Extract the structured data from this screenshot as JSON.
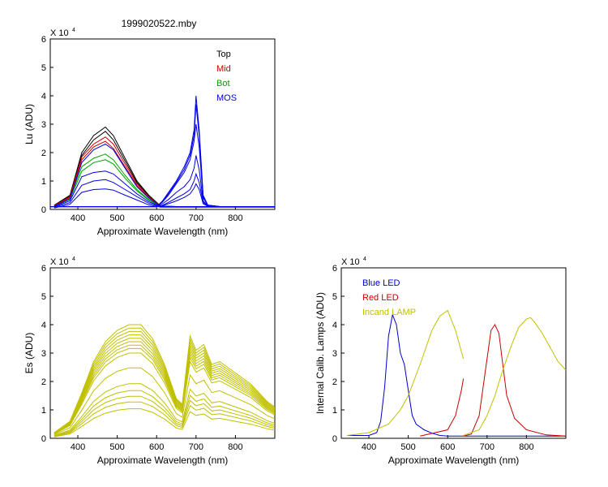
{
  "figure_title": "1999020522.mby",
  "chart_data": [
    {
      "type": "line",
      "title": "",
      "xlabel": "Approximate Wavelength (nm)",
      "ylabel": "Lu (ADU)",
      "multiplier": "X 10",
      "exponent": "4",
      "xlim": [
        330,
        900
      ],
      "ylim": [
        0,
        60000
      ],
      "xticks": [
        "400",
        "500",
        "600",
        "700",
        "800"
      ],
      "xtick_values": [
        400,
        500,
        600,
        700,
        800
      ],
      "yticks": [
        "0",
        "1",
        "2",
        "3",
        "4",
        "5",
        "6"
      ],
      "ytick_values": [
        0,
        10000,
        20000,
        30000,
        40000,
        50000,
        60000
      ],
      "legend_position": "top-right",
      "legend": [
        {
          "name": "Top",
          "color": "#000000"
        },
        {
          "name": "Mid",
          "color": "#cc0000"
        },
        {
          "name": "Bot",
          "color": "#00a000"
        },
        {
          "name": "MOS",
          "color": "#0000ee"
        }
      ],
      "series": [
        {
          "name": "Top",
          "color": "#000000",
          "x": [
            340,
            380,
            410,
            440,
            470,
            490,
            520,
            550,
            580,
            610,
            650,
            900
          ],
          "y": [
            1500,
            5000,
            20000,
            26000,
            29000,
            26000,
            18000,
            10000,
            5000,
            1200,
            1000,
            1000
          ]
        },
        {
          "name": "Top",
          "color": "#000000",
          "x": [
            340,
            380,
            410,
            440,
            470,
            490,
            520,
            550,
            580,
            610,
            650,
            900
          ],
          "y": [
            1400,
            4700,
            19000,
            24500,
            27500,
            24500,
            17000,
            9500,
            4700,
            1100,
            1000,
            1000
          ]
        },
        {
          "name": "Mid",
          "color": "#cc0000",
          "x": [
            340,
            380,
            410,
            440,
            470,
            490,
            520,
            550,
            580,
            610,
            650,
            900
          ],
          "y": [
            1300,
            4500,
            18500,
            23000,
            25500,
            23000,
            16000,
            9000,
            4500,
            1100,
            1000,
            1000
          ]
        },
        {
          "name": "Mid",
          "color": "#cc0000",
          "x": [
            340,
            380,
            410,
            440,
            470,
            490,
            520,
            550,
            580,
            610,
            650,
            900
          ],
          "y": [
            1200,
            4200,
            17500,
            22000,
            24000,
            21500,
            15000,
            8500,
            4200,
            1100,
            1000,
            1000
          ]
        },
        {
          "name": "Bot",
          "color": "#00a000",
          "x": [
            340,
            380,
            410,
            440,
            470,
            490,
            520,
            550,
            580,
            610,
            650,
            900
          ],
          "y": [
            1100,
            3800,
            15000,
            18000,
            19500,
            17500,
            12000,
            7000,
            3500,
            1000,
            1000,
            1000
          ]
        },
        {
          "name": "Bot",
          "color": "#00a000",
          "x": [
            340,
            380,
            410,
            440,
            470,
            490,
            520,
            550,
            580,
            610,
            650,
            900
          ],
          "y": [
            1000,
            3500,
            13500,
            16500,
            17500,
            16000,
            11000,
            6500,
            3200,
            1000,
            1000,
            1000
          ]
        },
        {
          "name": "MOS",
          "color": "#0000ee",
          "x": [
            340,
            380,
            410,
            440,
            470,
            490,
            520,
            550,
            580,
            610,
            650,
            900
          ],
          "y": [
            1100,
            3800,
            16500,
            21000,
            23000,
            21000,
            14500,
            8000,
            4000,
            1000,
            1000,
            1000
          ]
        },
        {
          "name": "MOS",
          "color": "#0000ee",
          "x": [
            340,
            380,
            410,
            440,
            470,
            490,
            520,
            550,
            580,
            610,
            650,
            900
          ],
          "y": [
            900,
            3000,
            11500,
            13000,
            13500,
            12500,
            9000,
            5500,
            2700,
            1000,
            1000,
            1000
          ]
        },
        {
          "name": "MOS",
          "color": "#0000ee",
          "x": [
            340,
            380,
            410,
            440,
            470,
            490,
            520,
            550,
            580,
            610,
            650,
            900
          ],
          "y": [
            700,
            2400,
            8500,
            10000,
            10500,
            9500,
            7000,
            4500,
            2200,
            900,
            900,
            900
          ]
        },
        {
          "name": "MOS",
          "color": "#0000ee",
          "x": [
            340,
            380,
            410,
            440,
            470,
            490,
            520,
            550,
            580,
            610,
            650,
            900
          ],
          "y": [
            500,
            1800,
            6000,
            7000,
            7200,
            6800,
            5000,
            3300,
            1600,
            800,
            800,
            800
          ]
        },
        {
          "name": "MOS",
          "color": "#0000ee",
          "x": [
            330,
            600,
            615,
            630,
            650,
            670,
            685,
            695,
            700,
            708,
            718,
            730,
            760,
            900
          ],
          "y": [
            1000,
            1000,
            3000,
            6000,
            10000,
            15000,
            20000,
            28000,
            40000,
            28000,
            5000,
            1500,
            1000,
            1000
          ]
        },
        {
          "name": "MOS",
          "color": "#0000ee",
          "x": [
            330,
            600,
            615,
            630,
            650,
            670,
            685,
            695,
            700,
            708,
            718,
            730,
            760,
            900
          ],
          "y": [
            1000,
            1000,
            2800,
            5500,
            9500,
            14000,
            19000,
            26000,
            37000,
            26000,
            4500,
            1500,
            1000,
            1000
          ]
        },
        {
          "name": "MOS",
          "color": "#0000ee",
          "x": [
            330,
            600,
            615,
            630,
            650,
            670,
            685,
            695,
            700,
            708,
            718,
            730,
            760,
            900
          ],
          "y": [
            1000,
            1000,
            2600,
            5000,
            9000,
            13000,
            17500,
            24000,
            30000,
            22000,
            4000,
            1500,
            1000,
            1000
          ]
        },
        {
          "name": "MOS",
          "color": "#0000ee",
          "x": [
            330,
            600,
            615,
            630,
            650,
            670,
            685,
            695,
            700,
            708,
            718,
            730,
            760,
            900
          ],
          "y": [
            1000,
            1000,
            2000,
            3500,
            6000,
            8000,
            10500,
            14500,
            19000,
            14000,
            3000,
            1300,
            1000,
            1000
          ]
        },
        {
          "name": "MOS",
          "color": "#0000ee",
          "x": [
            330,
            600,
            615,
            630,
            650,
            670,
            685,
            695,
            700,
            708,
            718,
            730,
            760,
            900
          ],
          "y": [
            900,
            900,
            1500,
            2500,
            4000,
            5500,
            7000,
            10000,
            12500,
            9500,
            2500,
            1200,
            900,
            900
          ]
        },
        {
          "name": "MOS",
          "color": "#0000ee",
          "x": [
            330,
            600,
            615,
            630,
            650,
            670,
            685,
            695,
            700,
            708,
            718,
            730,
            760,
            900
          ],
          "y": [
            900,
            900,
            1300,
            2000,
            3000,
            4200,
            5500,
            7500,
            9000,
            7000,
            2000,
            1100,
            900,
            900
          ]
        }
      ]
    },
    {
      "type": "line",
      "title": "",
      "xlabel": "Approximate Wavelength (nm)",
      "ylabel": "Es (ADU)",
      "multiplier": "X 10",
      "exponent": "4",
      "xlim": [
        330,
        900
      ],
      "ylim": [
        0,
        60000
      ],
      "xticks": [
        "400",
        "500",
        "600",
        "700",
        "800"
      ],
      "xtick_values": [
        400,
        500,
        600,
        700,
        800
      ],
      "yticks": [
        "0",
        "1",
        "2",
        "3",
        "4",
        "5",
        "6"
      ],
      "ytick_values": [
        0,
        10000,
        20000,
        30000,
        40000,
        50000,
        60000
      ],
      "legend": [],
      "series_color": "#c0c000",
      "x": [
        340,
        380,
        410,
        440,
        470,
        500,
        530,
        560,
        590,
        620,
        650,
        665,
        685,
        700,
        720,
        740,
        760,
        800,
        840,
        880,
        900
      ],
      "scales": [
        1.0,
        0.97,
        0.94,
        0.91,
        0.88,
        0.85,
        0.82,
        0.79,
        0.75,
        0.62,
        0.48,
        0.42,
        0.37,
        0.32,
        0.26
      ],
      "base": [
        2000,
        6000,
        16000,
        27000,
        34000,
        38000,
        40000,
        40000,
        35000,
        26000,
        14000,
        12000,
        36000,
        31000,
        33000,
        26000,
        27000,
        23000,
        19000,
        13000,
        11000
      ]
    },
    {
      "type": "line",
      "title": "",
      "xlabel": "Approximate Wavelength (nm)",
      "ylabel": "Internal Calib. Lamps (ADU)",
      "multiplier": "X 10",
      "exponent": "4",
      "xlim": [
        330,
        900
      ],
      "ylim": [
        0,
        60000
      ],
      "xticks": [
        "400",
        "500",
        "600",
        "700",
        "800"
      ],
      "xtick_values": [
        400,
        500,
        600,
        700,
        800
      ],
      "yticks": [
        "0",
        "1",
        "2",
        "3",
        "4",
        "5",
        "6"
      ],
      "ytick_values": [
        0,
        10000,
        20000,
        30000,
        40000,
        50000,
        60000
      ],
      "legend_position": "top-left",
      "legend": [
        {
          "name": "Blue LED",
          "color": "#0000cc"
        },
        {
          "name": "Red LED",
          "color": "#cc0000"
        },
        {
          "name": "Incand LAMP",
          "color": "#c0c000"
        }
      ],
      "series": [
        {
          "name": "Blue LED",
          "color": "#0000cc",
          "x": [
            345,
            400,
            420,
            430,
            440,
            450,
            460,
            470,
            480,
            490,
            500,
            510,
            520,
            540,
            560,
            580,
            600,
            900
          ],
          "y": [
            1000,
            1000,
            2000,
            6000,
            18000,
            36000,
            43500,
            40000,
            30000,
            26000,
            17000,
            8000,
            5000,
            3000,
            1800,
            1000,
            800,
            800
          ]
        },
        {
          "name": "Red LED",
          "color": "#cc0000",
          "x": [
            530,
            600,
            620,
            635,
            640
          ],
          "y": [
            800,
            3000,
            8000,
            17000,
            21000
          ]
        },
        {
          "name": "Red LED",
          "color": "#cc0000",
          "x": [
            640,
            660,
            680,
            700,
            710,
            720,
            730,
            740,
            750,
            770,
            800,
            850,
            900
          ],
          "y": [
            800,
            1500,
            8000,
            28000,
            38000,
            40000,
            37000,
            26000,
            15000,
            7000,
            3000,
            1200,
            800
          ]
        },
        {
          "name": "Incand LAMP",
          "color": "#c0c000",
          "x": [
            345,
            400,
            450,
            480,
            500,
            530,
            560,
            580,
            600,
            620,
            640
          ],
          "y": [
            1000,
            2000,
            5000,
            10000,
            15000,
            26000,
            38000,
            43000,
            45000,
            38000,
            28000
          ]
        },
        {
          "name": "Incand LAMP",
          "color": "#c0c000",
          "x": [
            640,
            680,
            700,
            720,
            740,
            760,
            780,
            800,
            810,
            820,
            840,
            860,
            880,
            900
          ],
          "y": [
            1000,
            3000,
            8000,
            15000,
            24000,
            32000,
            39000,
            42000,
            42500,
            41000,
            37000,
            32000,
            27000,
            24000
          ]
        }
      ]
    }
  ]
}
